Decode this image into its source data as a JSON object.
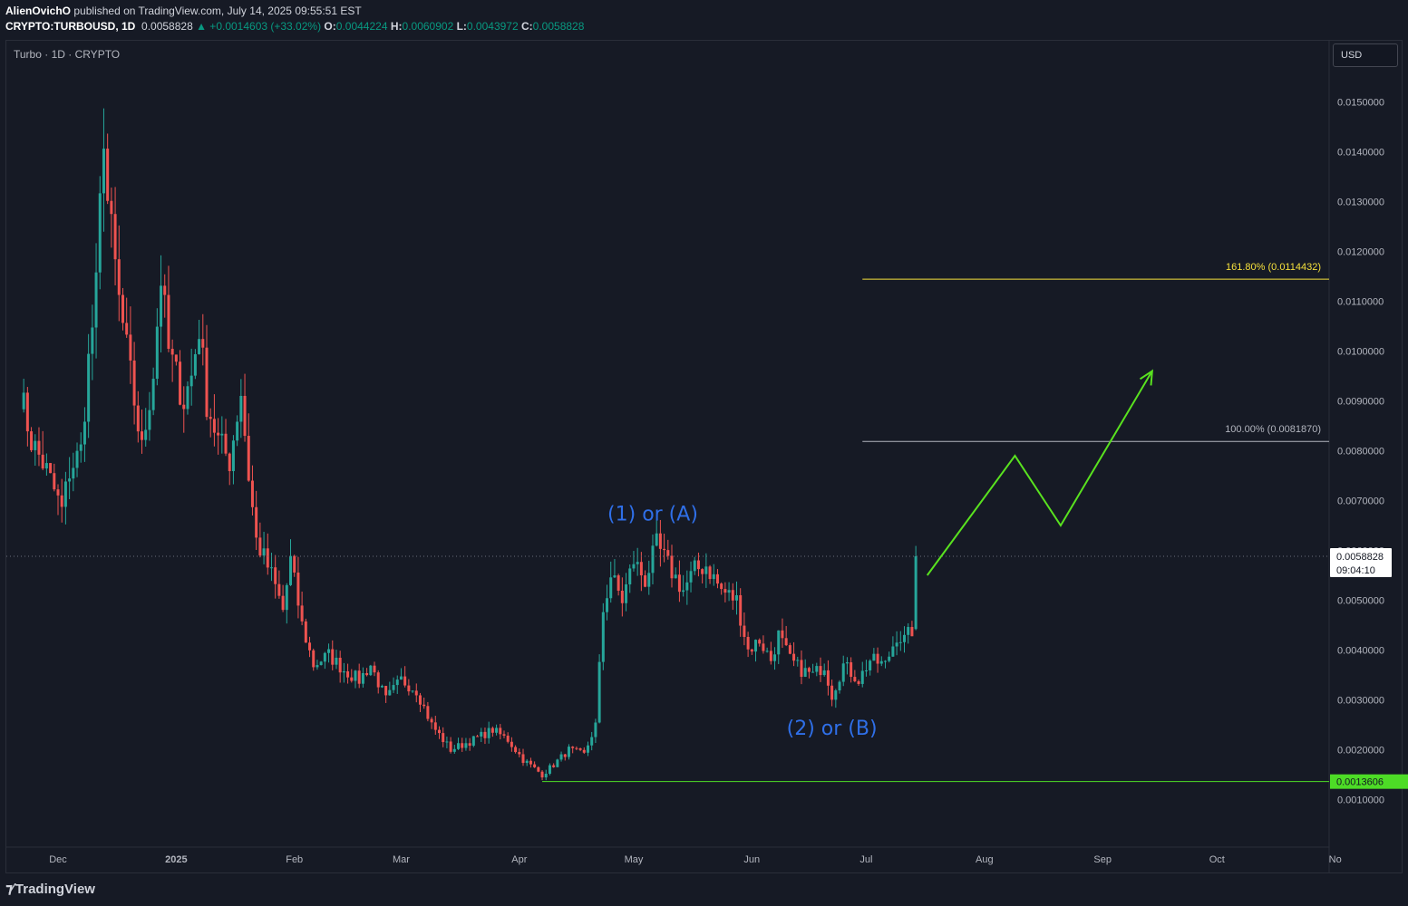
{
  "header": {
    "author": "AlienOvichO",
    "published": "published on TradingView.com, July 14, 2025 09:55:51 EST",
    "symbol": "CRYPTO:TURBOUSD, 1D",
    "last": "0.0058828",
    "change": "▲ +0.0014603 (+33.02%)",
    "o_label": "O:",
    "o_val": "0.0044224",
    "h_label": "H:",
    "h_val": "0.0060902",
    "l_label": "L:",
    "l_val": "0.0043972",
    "c_label": "C:",
    "c_val": "0.0058828"
  },
  "legend": "Turbo · 1D · CRYPTO",
  "currency_button": "USD",
  "branding": "TradingView",
  "colors": {
    "background": "#161a25",
    "up": "#26a69a",
    "down": "#ef5350",
    "fib_161": "#f5e03c",
    "fib_100": "#b2b5be",
    "support": "#4ddc26",
    "projection": "#59e21f",
    "wave_label": "#2f6fe8"
  },
  "chart_data": {
    "type": "candlestick",
    "interval": "1D",
    "ylim": [
      0.0,
      0.0165
    ],
    "y_ticks": [
      "0.0150000",
      "0.0140000",
      "0.0130000",
      "0.0120000",
      "0.0110000",
      "0.0100000",
      "0.0090000",
      "0.0080000",
      "0.0070000",
      "0.0060000",
      "0.0050000",
      "0.0040000",
      "0.0030000",
      "0.0020000",
      "0.0010000"
    ],
    "x_ticks": [
      "Dec",
      "2025",
      "Feb",
      "Mar",
      "Apr",
      "May",
      "Jun",
      "Jul",
      "Aug",
      "Sep",
      "Oct",
      "No"
    ],
    "close_anchors": [
      [
        "2024-11-21",
        0.0092
      ],
      [
        "2024-11-24",
        0.0082
      ],
      [
        "2024-11-28",
        0.0076
      ],
      [
        "2024-12-02",
        0.0068
      ],
      [
        "2024-12-04",
        0.0076
      ],
      [
        "2024-12-07",
        0.008
      ],
      [
        "2024-12-09",
        0.0098
      ],
      [
        "2024-12-11",
        0.0112
      ],
      [
        "2024-12-13",
        0.0145
      ],
      [
        "2024-12-14",
        0.013
      ],
      [
        "2024-12-17",
        0.011
      ],
      [
        "2024-12-20",
        0.0095
      ],
      [
        "2024-12-23",
        0.008
      ],
      [
        "2024-12-26",
        0.0096
      ],
      [
        "2024-12-28",
        0.0115
      ],
      [
        "2024-12-30",
        0.01
      ],
      [
        "2025-01-03",
        0.009
      ],
      [
        "2025-01-05",
        0.0095
      ],
      [
        "2025-01-07",
        0.0105
      ],
      [
        "2025-01-09",
        0.009
      ],
      [
        "2025-01-12",
        0.0082
      ],
      [
        "2025-01-15",
        0.0078
      ],
      [
        "2025-01-18",
        0.0092
      ],
      [
        "2025-01-20",
        0.0075
      ],
      [
        "2025-01-22",
        0.0062
      ],
      [
        "2025-01-26",
        0.0055
      ],
      [
        "2025-01-29",
        0.0048
      ],
      [
        "2025-01-31",
        0.0058
      ],
      [
        "2025-02-03",
        0.0045
      ],
      [
        "2025-02-06",
        0.0037
      ],
      [
        "2025-02-10",
        0.0039
      ],
      [
        "2025-02-14",
        0.0036
      ],
      [
        "2025-02-18",
        0.0034
      ],
      [
        "2025-02-21",
        0.0037
      ],
      [
        "2025-02-25",
        0.003
      ],
      [
        "2025-03-01",
        0.0034
      ],
      [
        "2025-03-05",
        0.0032
      ],
      [
        "2025-03-09",
        0.0025
      ],
      [
        "2025-03-14",
        0.002
      ],
      [
        "2025-03-20",
        0.0022
      ],
      [
        "2025-03-25",
        0.0024
      ],
      [
        "2025-03-29",
        0.0022
      ],
      [
        "2025-04-02",
        0.0018
      ],
      [
        "2025-04-07",
        0.0015
      ],
      [
        "2025-04-10",
        0.0017
      ],
      [
        "2025-04-14",
        0.002
      ],
      [
        "2025-04-18",
        0.0019
      ],
      [
        "2025-04-21",
        0.0025
      ],
      [
        "2025-04-23",
        0.0048
      ],
      [
        "2025-04-25",
        0.0055
      ],
      [
        "2025-04-28",
        0.005
      ],
      [
        "2025-05-01",
        0.0058
      ],
      [
        "2025-05-04",
        0.0054
      ],
      [
        "2025-05-07",
        0.0061
      ],
      [
        "2025-05-10",
        0.0057
      ],
      [
        "2025-05-14",
        0.0052
      ],
      [
        "2025-05-17",
        0.0056
      ],
      [
        "2025-05-20",
        0.0057
      ],
      [
        "2025-05-24",
        0.0052
      ],
      [
        "2025-05-28",
        0.005
      ],
      [
        "2025-05-31",
        0.004
      ],
      [
        "2025-06-03",
        0.0042
      ],
      [
        "2025-06-06",
        0.0038
      ],
      [
        "2025-06-08",
        0.0043
      ],
      [
        "2025-06-11",
        0.0038
      ],
      [
        "2025-06-14",
        0.0036
      ],
      [
        "2025-06-17",
        0.0035
      ],
      [
        "2025-06-20",
        0.0037
      ],
      [
        "2025-06-22",
        0.0031
      ],
      [
        "2025-06-25",
        0.0037
      ],
      [
        "2025-06-29",
        0.0034
      ],
      [
        "2025-07-02",
        0.0038
      ],
      [
        "2025-07-06",
        0.0037
      ],
      [
        "2025-07-09",
        0.0043
      ],
      [
        "2025-07-11",
        0.0042
      ],
      [
        "2025-07-13",
        0.0044
      ],
      [
        "2025-07-14",
        0.0058828
      ]
    ],
    "current_price": "0.0058828",
    "countdown": "09:04:10",
    "levels": [
      {
        "label": "161.80% (0.0114432)",
        "value": 0.0114432
      },
      {
        "label": "100.00% (0.0081870)",
        "value": 0.008187
      },
      {
        "label": "0.0013606",
        "value": 0.0013606
      }
    ],
    "annotations": [
      {
        "text": "(1) or (A)",
        "date": "2025-05-06",
        "value": 0.0066
      },
      {
        "text": "(2) or (B)",
        "date": "2025-06-22",
        "value": 0.0023
      }
    ],
    "projection_path": [
      [
        "2025-07-17",
        0.0055
      ],
      [
        "2025-08-09",
        0.0079
      ],
      [
        "2025-08-21",
        0.0065
      ],
      [
        "2025-09-14",
        0.0096
      ]
    ]
  }
}
